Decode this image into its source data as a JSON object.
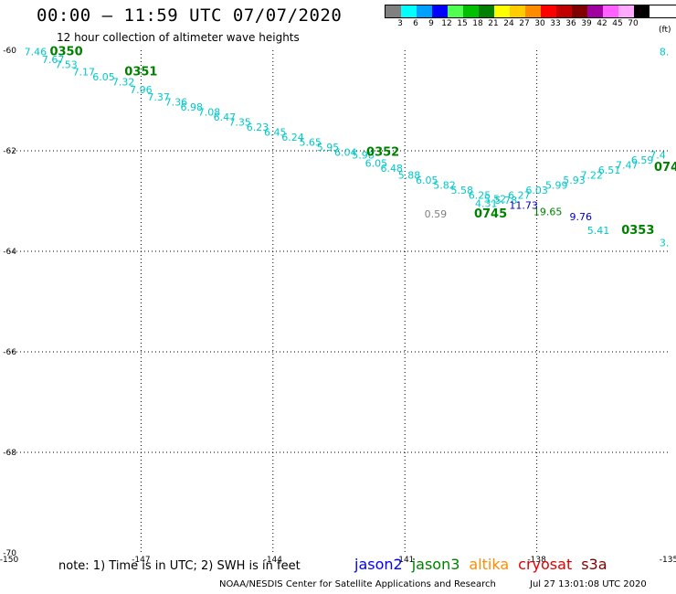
{
  "header": {
    "title": "00:00 – 11:59 UTC 07/07/2020",
    "subtitle": "12 hour collection of altimeter wave heights"
  },
  "legend": {
    "unit": "(ft)",
    "bins": [
      {
        "label": "3",
        "color": "#808080"
      },
      {
        "label": "6",
        "color": "#00ffff"
      },
      {
        "label": "9",
        "color": "#00a0ff"
      },
      {
        "label": "12",
        "color": "#0000ff"
      },
      {
        "label": "15",
        "color": "#50ff50"
      },
      {
        "label": "18",
        "color": "#00c000"
      },
      {
        "label": "21",
        "color": "#008000"
      },
      {
        "label": "24",
        "color": "#ffff00"
      },
      {
        "label": "27",
        "color": "#ffcc00"
      },
      {
        "label": "30",
        "color": "#ff8c00"
      },
      {
        "label": "33",
        "color": "#ff0000"
      },
      {
        "label": "36",
        "color": "#c00000"
      },
      {
        "label": "39",
        "color": "#800000"
      },
      {
        "label": "42",
        "color": "#a000a0"
      },
      {
        "label": "45",
        "color": "#ff60ff"
      },
      {
        "label": "70",
        "color": "#ffaaff"
      },
      {
        "label": "",
        "color": "#000000"
      }
    ]
  },
  "map": {
    "lon_range": [
      -150,
      -135
    ],
    "lat_range": [
      -70,
      -60
    ],
    "lon_ticks": [
      {
        "value": -150,
        "label": "-150"
      },
      {
        "value": -147,
        "label": "-147"
      },
      {
        "value": -144,
        "label": "-144"
      },
      {
        "value": -141,
        "label": "-141"
      },
      {
        "value": -138,
        "label": "-138"
      },
      {
        "value": -135,
        "label": "-135"
      }
    ],
    "lat_ticks": [
      {
        "value": -60,
        "label": "-60"
      },
      {
        "value": -62,
        "label": "-62"
      },
      {
        "value": -64,
        "label": "-64"
      },
      {
        "value": -66,
        "label": "-66"
      },
      {
        "value": -68,
        "label": "-68"
      },
      {
        "value": -70,
        "label": "-70"
      }
    ],
    "swh_labels": [
      {
        "text": "7.46",
        "lon": -149.4,
        "lat": -60.1,
        "color": "#00c8c8"
      },
      {
        "text": "7.67",
        "lon": -149.0,
        "lat": -60.25,
        "color": "#00c8c8"
      },
      {
        "text": "7.53",
        "lon": -148.7,
        "lat": -60.35,
        "color": "#00c8c8"
      },
      {
        "text": "7.17",
        "lon": -148.3,
        "lat": -60.5,
        "color": "#00c8c8"
      },
      {
        "text": "6.05",
        "lon": -147.85,
        "lat": -60.6,
        "color": "#00c8c8"
      },
      {
        "text": "7.32",
        "lon": -147.4,
        "lat": -60.7,
        "color": "#00c8c8"
      },
      {
        "text": "7.96",
        "lon": -147.0,
        "lat": -60.85,
        "color": "#00c8c8"
      },
      {
        "text": "7.37",
        "lon": -146.6,
        "lat": -61.0,
        "color": "#00c8c8"
      },
      {
        "text": "7.36",
        "lon": -146.2,
        "lat": -61.1,
        "color": "#00c8c8"
      },
      {
        "text": "6.98",
        "lon": -145.85,
        "lat": -61.2,
        "color": "#00c8c8"
      },
      {
        "text": "7.08",
        "lon": -145.45,
        "lat": -61.3,
        "color": "#00c8c8"
      },
      {
        "text": "6.47",
        "lon": -145.1,
        "lat": -61.4,
        "color": "#00c8c8"
      },
      {
        "text": "7.35",
        "lon": -144.75,
        "lat": -61.5,
        "color": "#00c8c8"
      },
      {
        "text": "6.23",
        "lon": -144.35,
        "lat": -61.6,
        "color": "#00c8c8"
      },
      {
        "text": "6.45",
        "lon": -143.95,
        "lat": -61.7,
        "color": "#00c8c8"
      },
      {
        "text": "6.24",
        "lon": -143.55,
        "lat": -61.8,
        "color": "#00c8c8"
      },
      {
        "text": "5.65",
        "lon": -143.15,
        "lat": -61.9,
        "color": "#00c8c8"
      },
      {
        "text": "5.95",
        "lon": -142.75,
        "lat": -62.0,
        "color": "#00c8c8"
      },
      {
        "text": "6.04",
        "lon": -142.35,
        "lat": -62.1,
        "color": "#00c8c8"
      },
      {
        "text": "5.98",
        "lon": -141.95,
        "lat": -62.15,
        "color": "#00c8c8"
      },
      {
        "text": "6.05",
        "lon": -141.65,
        "lat": -62.32,
        "color": "#00c8c8"
      },
      {
        "text": "6.48",
        "lon": -141.3,
        "lat": -62.42,
        "color": "#00c8c8"
      },
      {
        "text": "5.88",
        "lon": -140.9,
        "lat": -62.55,
        "color": "#00c8c8"
      },
      {
        "text": "6.05",
        "lon": -140.5,
        "lat": -62.65,
        "color": "#00c8c8"
      },
      {
        "text": "5.82",
        "lon": -140.1,
        "lat": -62.75,
        "color": "#00c8c8"
      },
      {
        "text": "5.58",
        "lon": -139.7,
        "lat": -62.85,
        "color": "#00c8c8"
      },
      {
        "text": "6.25",
        "lon": -139.3,
        "lat": -62.95,
        "color": "#00c8c8"
      },
      {
        "text": "4.31",
        "lon": -139.15,
        "lat": -63.12,
        "color": "#00c8c8"
      },
      {
        "text": "5.52",
        "lon": -138.95,
        "lat": -63.03,
        "color": "#00c8c8"
      },
      {
        "text": "5.78",
        "lon": -138.7,
        "lat": -63.05,
        "color": "#00c8c8"
      },
      {
        "text": "6.27",
        "lon": -138.4,
        "lat": -62.95,
        "color": "#00c8c8"
      },
      {
        "text": "6.03",
        "lon": -138.0,
        "lat": -62.85,
        "color": "#00c8c8"
      },
      {
        "text": "5.99",
        "lon": -137.55,
        "lat": -62.75,
        "color": "#00c8c8"
      },
      {
        "text": "5.93",
        "lon": -137.15,
        "lat": -62.65,
        "color": "#00c8c8"
      },
      {
        "text": "7.22",
        "lon": -136.75,
        "lat": -62.55,
        "color": "#00c8c8"
      },
      {
        "text": "6.51",
        "lon": -136.35,
        "lat": -62.45,
        "color": "#00c8c8"
      },
      {
        "text": "7.47",
        "lon": -135.95,
        "lat": -62.35,
        "color": "#00c8c8"
      },
      {
        "text": "6.59",
        "lon": -135.6,
        "lat": -62.25,
        "color": "#00c8c8"
      },
      {
        "text": "7.4",
        "lon": -135.25,
        "lat": -62.15,
        "color": "#00c8c8"
      },
      {
        "text": "5.41",
        "lon": -136.6,
        "lat": -63.65,
        "color": "#00c8c8"
      },
      {
        "text": "3.",
        "lon": -135.1,
        "lat": -63.9,
        "color": "#00c8c8"
      },
      {
        "text": "8.",
        "lon": -135.1,
        "lat": -60.1,
        "color": "#00c8c8"
      },
      {
        "text": "0.59",
        "lon": -140.3,
        "lat": -63.33,
        "color": "#808080"
      },
      {
        "text": "11.73",
        "lon": -138.3,
        "lat": -63.15,
        "color": "#0000c0"
      },
      {
        "text": "9.76",
        "lon": -137.0,
        "lat": -63.38,
        "color": "#0000c0"
      },
      {
        "text": "19.65",
        "lon": -137.75,
        "lat": -63.28,
        "color": "#008000"
      }
    ],
    "time_labels": [
      {
        "text": "0350",
        "lon": -148.7,
        "lat": -60.1,
        "color": "#008000"
      },
      {
        "text": "0351",
        "lon": -147.0,
        "lat": -60.5,
        "color": "#008000"
      },
      {
        "text": "0352",
        "lon": -141.5,
        "lat": -62.1,
        "color": "#008000"
      },
      {
        "text": "0745",
        "lon": -139.05,
        "lat": -63.33,
        "color": "#008000"
      },
      {
        "text": "0353",
        "lon": -135.7,
        "lat": -63.65,
        "color": "#008000"
      },
      {
        "text": "074",
        "lon": -135.05,
        "lat": -62.4,
        "color": "#008000"
      }
    ]
  },
  "footer": {
    "note": "note: 1) Time is in UTC; 2) SWH is in feet",
    "satellites": [
      {
        "name": "jason2",
        "color": "#0000ff"
      },
      {
        "name": "jason3",
        "color": "#008000"
      },
      {
        "name": "altika",
        "color": "#ff8c00"
      },
      {
        "name": "cryosat",
        "color": "#e00000"
      },
      {
        "name": "s3a",
        "color": "#800000"
      }
    ],
    "credit": "NOAA/NESDIS Center for Satellite Applications and Research",
    "timestamp": "Jul 27 13:01:08 UTC 2020"
  }
}
